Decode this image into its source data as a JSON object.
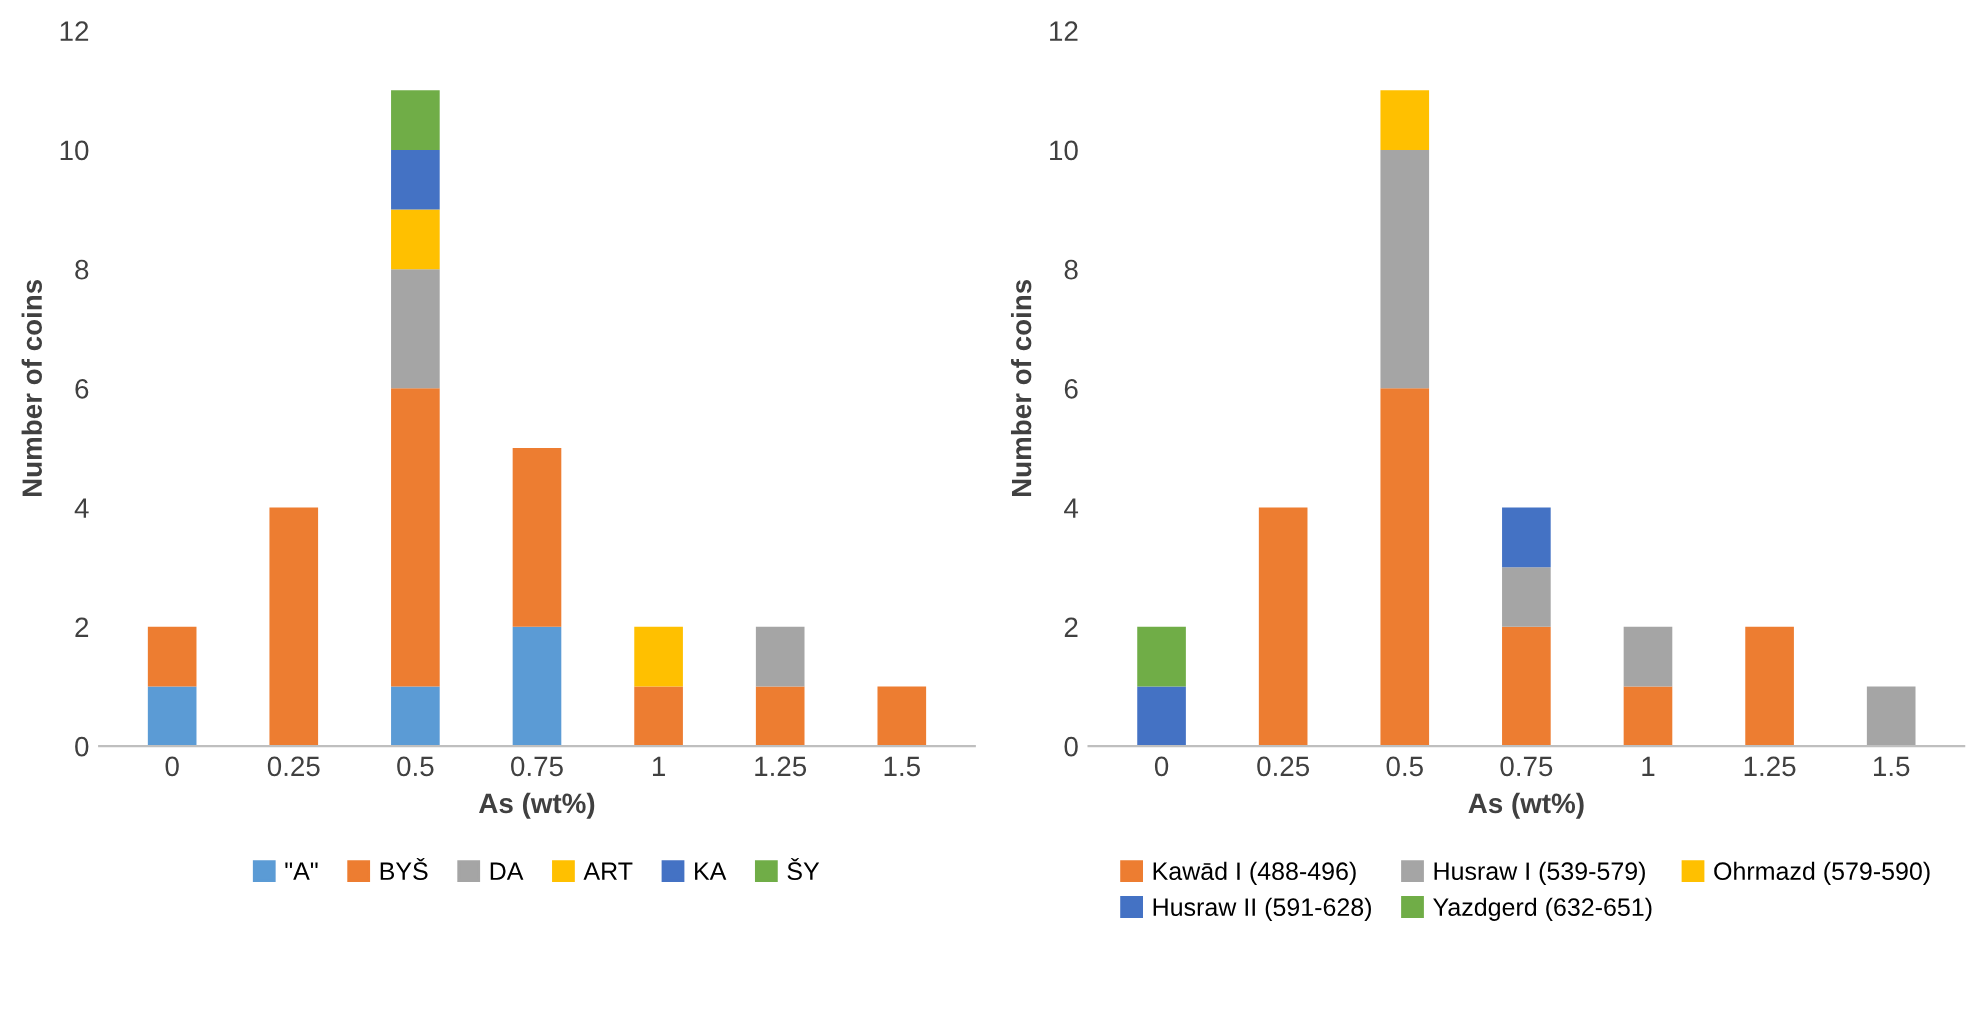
{
  "chart_data": [
    {
      "type": "bar",
      "stacked": true,
      "xlabel": "As (wt%)",
      "ylabel": "Number of coins",
      "categories": [
        "0",
        "0.25",
        "0.5",
        "0.75",
        "1",
        "1.25",
        "1.5"
      ],
      "ylim": [
        0,
        12
      ],
      "yticks": [
        0,
        2,
        4,
        6,
        8,
        10,
        12
      ],
      "grid": false,
      "legend": "bottom",
      "series": [
        {
          "name": "\"A\"",
          "color": "#5b9bd5",
          "values": [
            1,
            null,
            1,
            2,
            null,
            null,
            null
          ]
        },
        {
          "name": "BYŠ",
          "color": "#ed7d31",
          "values": [
            1,
            4,
            5,
            3,
            1,
            1,
            1
          ]
        },
        {
          "name": "DA",
          "color": "#a5a5a5",
          "values": [
            null,
            null,
            2,
            null,
            null,
            1,
            null
          ]
        },
        {
          "name": "ART",
          "color": "#ffc000",
          "values": [
            null,
            null,
            1,
            null,
            1,
            null,
            null
          ]
        },
        {
          "name": "KA",
          "color": "#4472c4",
          "values": [
            null,
            null,
            1,
            null,
            null,
            null,
            null
          ]
        },
        {
          "name": "ŠY",
          "color": "#70ad47",
          "values": [
            null,
            null,
            1,
            null,
            null,
            null,
            null
          ]
        }
      ]
    },
    {
      "type": "bar",
      "stacked": true,
      "xlabel": "As (wt%)",
      "ylabel": "Number of coins",
      "categories": [
        "0",
        "0.25",
        "0.5",
        "0.75",
        "1",
        "1.25",
        "1.5"
      ],
      "ylim": [
        0,
        12
      ],
      "yticks": [
        0,
        2,
        4,
        6,
        8,
        10,
        12
      ],
      "grid": false,
      "legend": "bottom",
      "series": [
        {
          "name": "Kawād I (488-496)",
          "color": "#ed7d31",
          "values": [
            null,
            4,
            6,
            2,
            1,
            2,
            null
          ]
        },
        {
          "name": "Husraw I (539-579)",
          "color": "#a5a5a5",
          "values": [
            null,
            null,
            4,
            1,
            1,
            null,
            1
          ]
        },
        {
          "name": "Ohrmazd (579-590)",
          "color": "#ffc000",
          "values": [
            null,
            null,
            1,
            null,
            null,
            null,
            null
          ]
        },
        {
          "name": "Husraw II (591-628)",
          "color": "#4472c4",
          "values": [
            1,
            null,
            null,
            1,
            null,
            null,
            null
          ]
        },
        {
          "name": "Yazdgerd (632-651)",
          "color": "#70ad47",
          "values": [
            1,
            null,
            null,
            null,
            null,
            null,
            null
          ]
        }
      ]
    }
  ]
}
